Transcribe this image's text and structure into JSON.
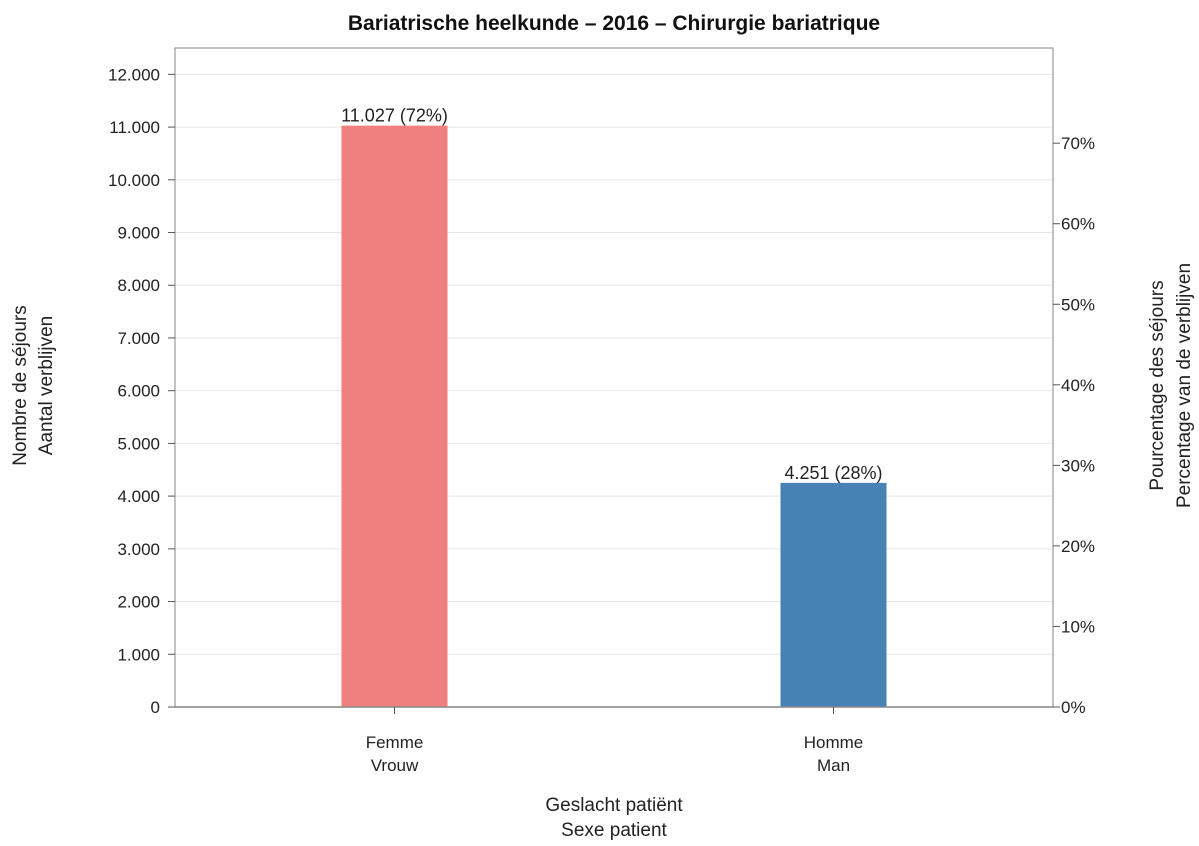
{
  "chart_data": {
    "type": "bar",
    "title": "Bariatrische heelkunde – 2016 – Chirurgie bariatrique",
    "categories": [
      [
        "Femme",
        "Vrouw"
      ],
      [
        "Homme",
        "Man"
      ]
    ],
    "values": [
      11027,
      4251
    ],
    "percentages": [
      72,
      28
    ],
    "data_labels": [
      "11.027 (72%)",
      "4.251 (28%)"
    ],
    "bar_colors": [
      "#f07f7f",
      "#4682b4"
    ],
    "xlabel": [
      "Geslacht patiënt",
      "Sexe patient"
    ],
    "ylabel_left": [
      "Nombre de séjours",
      "Aantal verblijven"
    ],
    "ylabel_right": [
      "Pourcentage des séjours",
      "Percentage van de verblijven"
    ],
    "ylim": [
      0,
      12500
    ],
    "yticks_left": [
      0,
      1000,
      2000,
      3000,
      4000,
      5000,
      6000,
      7000,
      8000,
      9000,
      10000,
      11000,
      12000
    ],
    "yticks_left_labels": [
      "0",
      "1.000",
      "2.000",
      "3.000",
      "4.000",
      "5.000",
      "6.000",
      "7.000",
      "8.000",
      "9.000",
      "10.000",
      "11.000",
      "12.000"
    ],
    "yticks_right": [
      0,
      10,
      20,
      30,
      40,
      50,
      60,
      70
    ],
    "yticks_right_labels": [
      "0%",
      "10%",
      "20%",
      "30%",
      "40%",
      "50%",
      "60%",
      "70%"
    ],
    "grid": true,
    "legend": "none"
  }
}
